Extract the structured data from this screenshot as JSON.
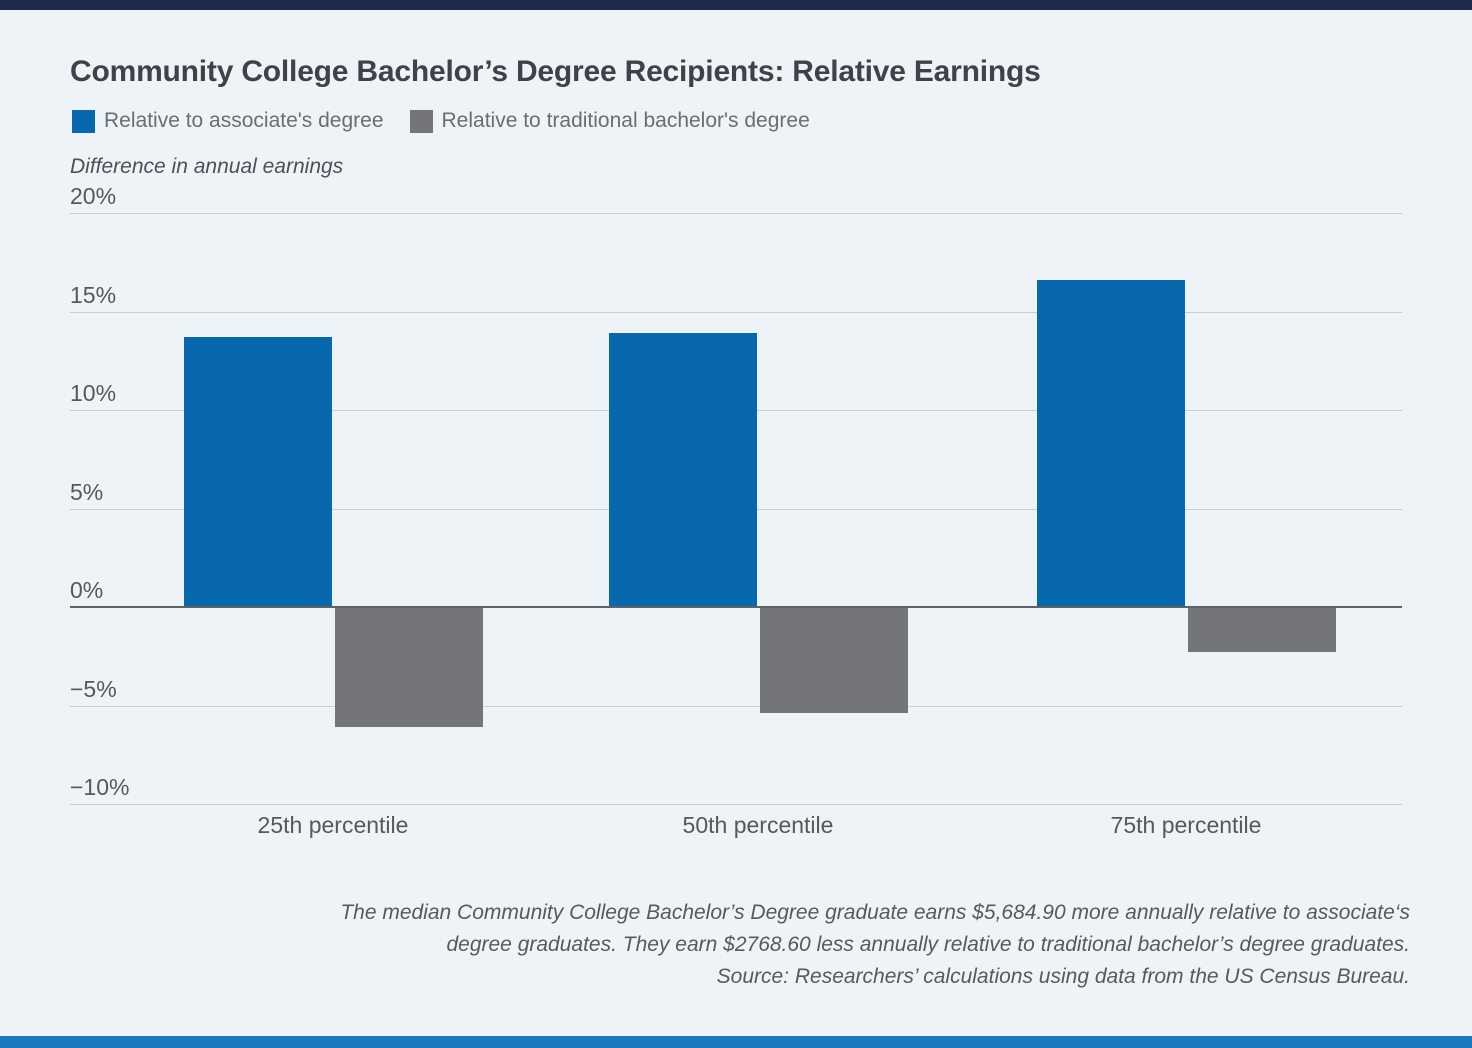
{
  "page": {
    "background_color": "#eef3f8",
    "top_bar_color": "#1e2c49",
    "bottom_bar_color": "#197abf"
  },
  "chart_data": {
    "type": "bar",
    "title": "Community College Bachelor’s Degree Recipients: Relative Earnings",
    "ylabel": "Difference in annual earnings",
    "xlabel": "",
    "categories": [
      "25th percentile",
      "50th percentile",
      "75th percentile"
    ],
    "series": [
      {
        "name": "Relative to associate's degree",
        "color": "#0768ae",
        "values": [
          13.7,
          13.9,
          16.6
        ]
      },
      {
        "name": "Relative to traditional bachelor's degree",
        "color": "#737578",
        "values": [
          -6.1,
          -5.4,
          -2.3
        ]
      }
    ],
    "yticks": [
      {
        "v": 20,
        "label": "20%"
      },
      {
        "v": 15,
        "label": "15%"
      },
      {
        "v": 10,
        "label": "10%"
      },
      {
        "v": 5,
        "label": "5%"
      },
      {
        "v": 0,
        "label": "0%"
      },
      {
        "v": -5,
        "label": "−5%"
      },
      {
        "v": -10,
        "label": "−10%"
      }
    ],
    "ylim": [
      -10,
      20
    ],
    "grid": true,
    "legend_position": "top-left",
    "zero_line": true
  },
  "footnote": {
    "lines": [
      "The median Community College Bachelor’s Degree graduate earns $5,684.90 more annually relative to associate‘s",
      "degree graduates. They earn $2768.60 less annually relative to traditional bachelor’s degree graduates.",
      "Source: Researchers’ calculations using data from the US Census Bureau."
    ]
  }
}
